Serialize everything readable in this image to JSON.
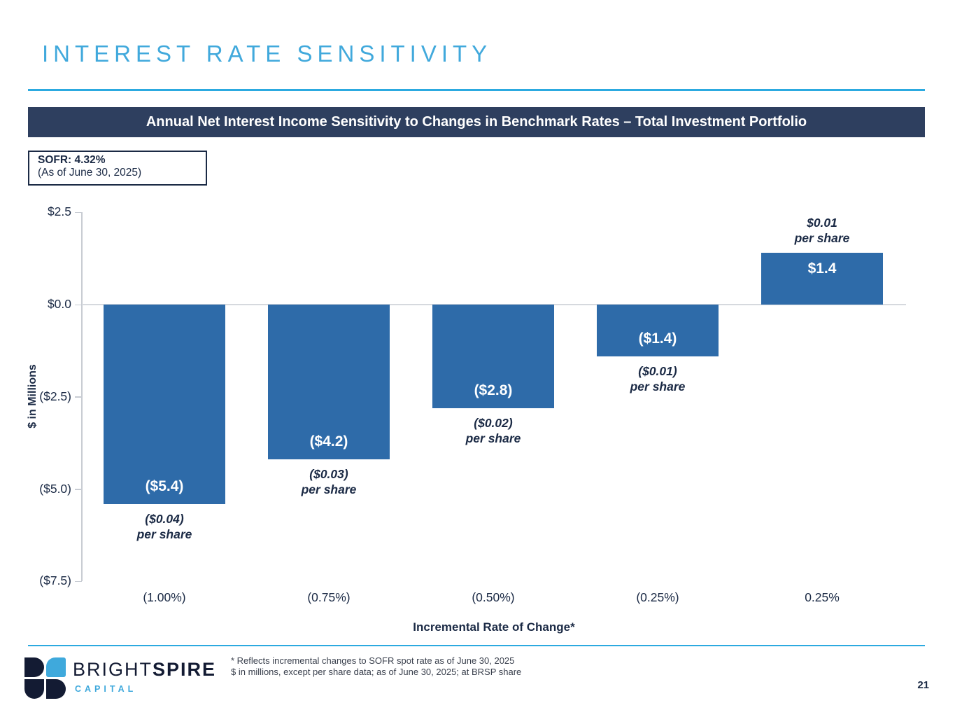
{
  "slide": {
    "title": "INTEREST RATE SENSITIVITY",
    "page_number": "21"
  },
  "banner": {
    "text": "Annual Net Interest Income Sensitivity to Changes in Benchmark Rates – Total Investment Portfolio"
  },
  "sofr_box": {
    "line1": "SOFR: 4.32%",
    "line2": "(As of June 30, 2025)"
  },
  "chart_data": {
    "type": "bar",
    "title": "Annual Net Interest Income Sensitivity to Changes in Benchmark Rates – Total Investment Portfolio",
    "xlabel": "Incremental Rate of Change*",
    "ylabel": "$ in Millions",
    "ylim": [
      -7.5,
      2.5
    ],
    "grid": "zero-line-only",
    "legend": "none",
    "bar_color": "#2e6ba9",
    "yticks": [
      {
        "label": "$2.5",
        "value": 2.5
      },
      {
        "label": "$0.0",
        "value": 0
      },
      {
        "label": "($2.5)",
        "value": -2.5
      },
      {
        "label": "($5.0)",
        "value": -5.0
      },
      {
        "label": "($7.5)",
        "value": -7.5
      }
    ],
    "categories": [
      "(1.00%)",
      "(0.75%)",
      "(0.50%)",
      "(0.25%)",
      "0.25%"
    ],
    "values": [
      -5.4,
      -4.2,
      -2.8,
      -1.4,
      1.4
    ],
    "bars": [
      {
        "category": "(1.00%)",
        "value": -5.4,
        "label": "($5.4)",
        "per_share": [
          "($0.04)",
          "per share"
        ]
      },
      {
        "category": "(0.75%)",
        "value": -4.2,
        "label": "($4.2)",
        "per_share": [
          "($0.03)",
          "per share"
        ]
      },
      {
        "category": "(0.50%)",
        "value": -2.8,
        "label": "($2.8)",
        "per_share": [
          "($0.02)",
          "per share"
        ]
      },
      {
        "category": "(0.25%)",
        "value": -1.4,
        "label": "($1.4)",
        "per_share": [
          "($0.01)",
          "per share"
        ]
      },
      {
        "category": "0.25%",
        "value": 1.4,
        "label": "$1.4",
        "per_share": [
          "$0.01",
          "per share"
        ]
      }
    ]
  },
  "footer": {
    "logo": {
      "brand_1": "BRIGHT",
      "brand_2": "SPIRE",
      "sub": "CAPITAL"
    },
    "footnote_line1": "* Reflects incremental changes to SOFR spot rate as of June 30, 2025",
    "footnote_line2": "$ in millions, except per share data; as of June 30, 2025; at BRSP share"
  },
  "colors": {
    "title_blue": "#41a9dc",
    "accent_line_blue": "#2caae0",
    "banner_navy": "#2e3f5f",
    "bar_blue": "#2e6ba9",
    "text_navy": "#1b2a45",
    "logo_navy": "#131b33",
    "logo_blue": "#3fa9dc"
  }
}
